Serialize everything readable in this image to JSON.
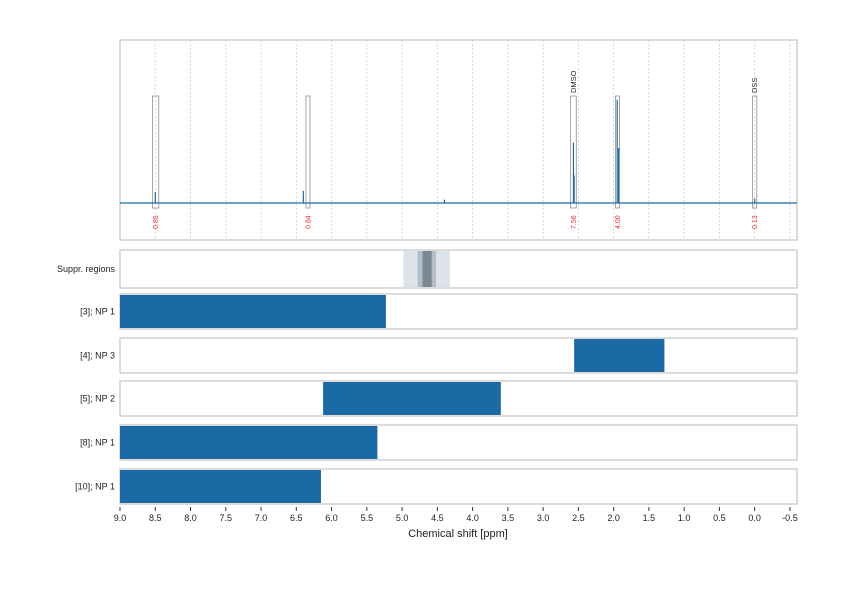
{
  "chart_data": {
    "type": "line",
    "xlabel": "Chemical shift [ppm]",
    "xlim": [
      9.0,
      -0.6
    ],
    "x_reversed": true,
    "xticks": [
      9.0,
      8.5,
      8.0,
      7.5,
      7.0,
      6.5,
      6.0,
      5.5,
      5.0,
      4.5,
      4.0,
      3.5,
      3.0,
      2.5,
      2.0,
      1.5,
      1.0,
      0.5,
      0.0,
      -0.5
    ],
    "xtick_labels": [
      "9.0",
      "8.5",
      "8.0",
      "7.5",
      "7.0",
      "6.5",
      "6.0",
      "5.5",
      "5.0",
      "4.5",
      "4.0",
      "3.5",
      "3.0",
      "2.5",
      "2.0",
      "1.5",
      "1.0",
      "0.5",
      "0.0",
      "-0.5"
    ],
    "grid": "vertical dotted",
    "color": "#1b6aa5",
    "spectrum": {
      "peaks": [
        {
          "ppm": 8.5,
          "height": 0.1
        },
        {
          "ppm": 6.4,
          "height": 0.11
        },
        {
          "ppm": 4.4,
          "height": 0.03
        },
        {
          "ppm": 2.57,
          "height": 0.55
        },
        {
          "ppm": 2.56,
          "height": 0.25
        },
        {
          "ppm": 1.95,
          "height": 0.94
        },
        {
          "ppm": 1.93,
          "height": 0.5
        },
        {
          "ppm": 0.0,
          "height": 0.04
        }
      ],
      "integration_regions": [
        {
          "from": 8.54,
          "to": 8.45,
          "integral": "0.85"
        },
        {
          "from": 6.36,
          "to": 6.31,
          "integral": "0.84"
        },
        {
          "from": 2.61,
          "to": 2.53,
          "integral": "7.56",
          "label": "DMSO"
        },
        {
          "from": 1.97,
          "to": 1.92,
          "integral": "4.00"
        },
        {
          "from": 0.03,
          "to": -0.03,
          "integral": "0.13",
          "label": "DSS"
        }
      ]
    },
    "suppressed_regions": {
      "label": "Suppr. regions",
      "bands": [
        {
          "from": 4.98,
          "to": 4.32,
          "color": "#dde3e9"
        },
        {
          "from": 4.78,
          "to": 4.52,
          "color": "#b3bdc6"
        },
        {
          "from": 4.71,
          "to": 4.58,
          "color": "#7a8893"
        }
      ]
    },
    "ranges": [
      {
        "label": "[3]; NP 1",
        "from": 9.0,
        "to": 5.23
      },
      {
        "label": "[4]; NP 3",
        "from": 2.56,
        "to": 1.28
      },
      {
        "label": "[5]; NP 2",
        "from": 6.12,
        "to": 3.6
      },
      {
        "label": "[8]; NP 1",
        "from": 9.0,
        "to": 5.35
      },
      {
        "label": "[10]; NP 1",
        "from": 9.0,
        "to": 6.15
      }
    ]
  }
}
